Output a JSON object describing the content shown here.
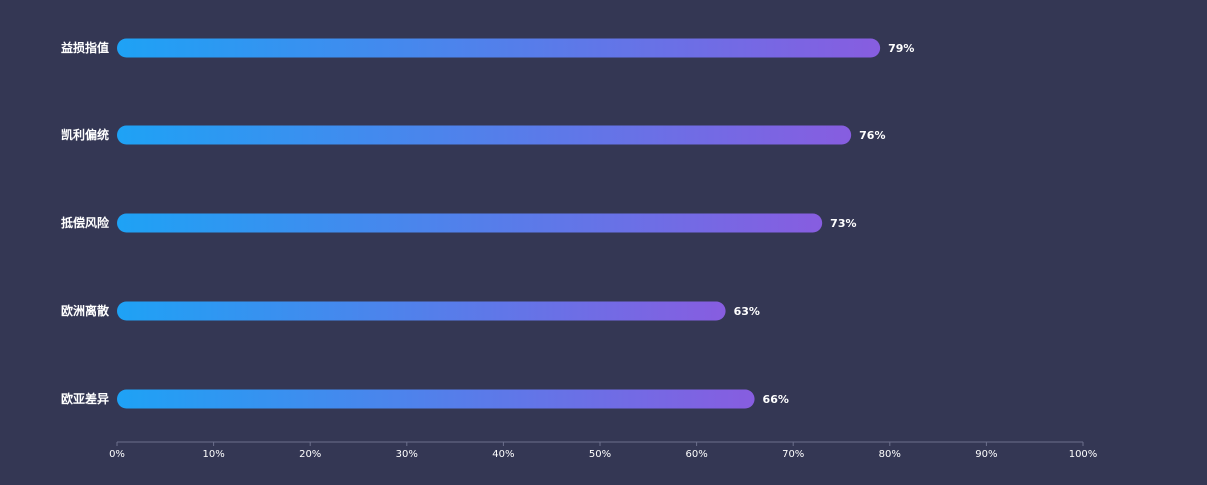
{
  "chart_data": {
    "type": "bar",
    "orientation": "horizontal",
    "categories": [
      "益损指值",
      "凯利偏统",
      "抵偿风险",
      "欧洲离散",
      "欧亚差异"
    ],
    "values": [
      79,
      76,
      73,
      63,
      66
    ],
    "value_suffix": "%",
    "xlim": [
      0,
      100
    ],
    "x_ticks": [
      "0%",
      "10%",
      "20%",
      "30%",
      "40%",
      "50%",
      "60%",
      "70%",
      "80%",
      "90%",
      "100%"
    ],
    "title": "",
    "xlabel": "",
    "ylabel": "",
    "grid": false,
    "legend": "none"
  },
  "colors": {
    "background": "#343754",
    "bar_gradient_start": "#1ea2f5",
    "bar_gradient_end": "#875de0",
    "axis_line": "#6c6f8c",
    "text": "#ffffff"
  }
}
